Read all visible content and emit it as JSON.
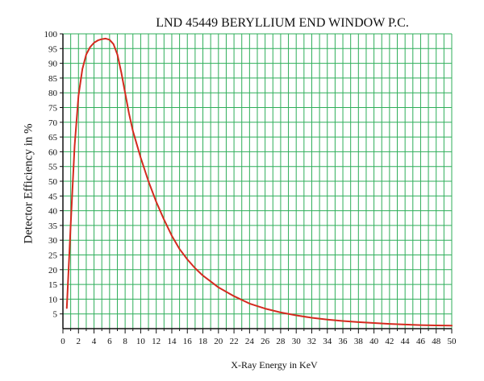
{
  "chart_data": {
    "type": "line",
    "title": "LND 45449 BERYLLIUM END WINDOW P.C.",
    "xlabel": "X-Ray Energy in KeV",
    "ylabel": "Detector Efficiency in %",
    "xlim": [
      0,
      50
    ],
    "ylim": [
      0,
      100
    ],
    "x_ticks": [
      0,
      2,
      4,
      6,
      8,
      10,
      12,
      14,
      16,
      18,
      20,
      22,
      24,
      26,
      28,
      30,
      32,
      34,
      36,
      38,
      40,
      42,
      44,
      46,
      48,
      50
    ],
    "y_ticks": [
      5,
      10,
      15,
      20,
      25,
      30,
      35,
      40,
      45,
      50,
      55,
      60,
      65,
      70,
      75,
      80,
      85,
      90,
      95,
      100
    ],
    "grid": true,
    "colors": {
      "grid": "#2fae5a",
      "line": "#d42a1f",
      "axis": "#111111"
    },
    "series": [
      {
        "points": [
          [
            0.5,
            7
          ],
          [
            1,
            35
          ],
          [
            1.5,
            62
          ],
          [
            2,
            79
          ],
          [
            2.5,
            88
          ],
          [
            3,
            93
          ],
          [
            3.5,
            95.5
          ],
          [
            4,
            97
          ],
          [
            4.5,
            97.8
          ],
          [
            5,
            98.2
          ],
          [
            5.5,
            98.4
          ],
          [
            6,
            98
          ],
          [
            6.5,
            96.5
          ],
          [
            7,
            93
          ],
          [
            7.5,
            87
          ],
          [
            8,
            80
          ],
          [
            8.5,
            73
          ],
          [
            9,
            67
          ],
          [
            10,
            58
          ],
          [
            11,
            50
          ],
          [
            12,
            43
          ],
          [
            13,
            37
          ],
          [
            14,
            31.5
          ],
          [
            15,
            27
          ],
          [
            16,
            23.5
          ],
          [
            17,
            20.5
          ],
          [
            18,
            18
          ],
          [
            19,
            16
          ],
          [
            20,
            14
          ],
          [
            22,
            11
          ],
          [
            24,
            8.5
          ],
          [
            26,
            6.8
          ],
          [
            28,
            5.5
          ],
          [
            30,
            4.5
          ],
          [
            32,
            3.7
          ],
          [
            34,
            3.1
          ],
          [
            36,
            2.6
          ],
          [
            38,
            2.2
          ],
          [
            40,
            1.9
          ],
          [
            42,
            1.6
          ],
          [
            44,
            1.4
          ],
          [
            46,
            1.2
          ],
          [
            48,
            1.1
          ],
          [
            50,
            1.0
          ]
        ]
      }
    ]
  }
}
